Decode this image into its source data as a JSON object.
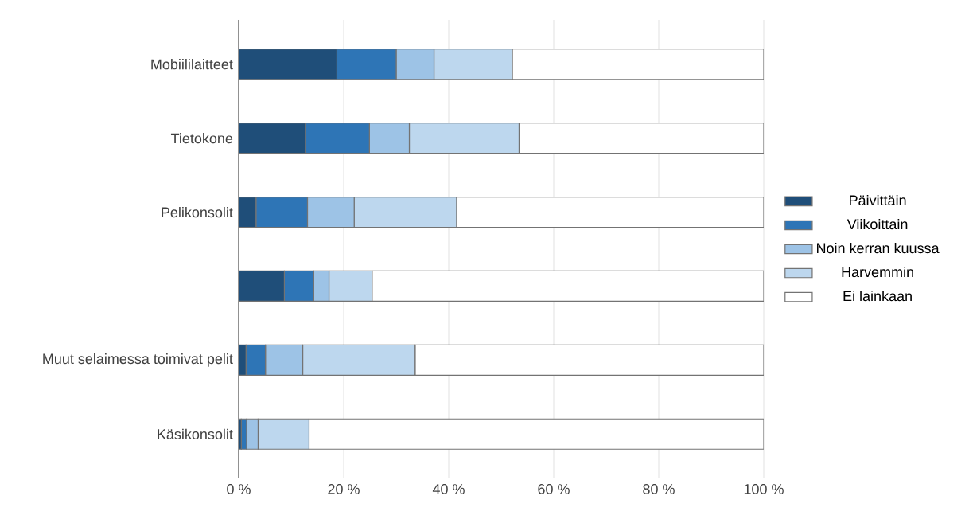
{
  "chart_data": {
    "type": "bar",
    "orientation": "horizontal",
    "stacked": true,
    "categories": [
      "Mobiililaitteet",
      "Tietokone",
      "Pelikonsolit",
      null,
      "Muut selaimessa toimivat pelit",
      "Käsikonsolit"
    ],
    "series": [
      {
        "name": "Päivittäin",
        "color": "#1f4e79",
        "values": [
          18.7,
          12.7,
          3.3,
          8.7,
          1.4,
          0.5
        ]
      },
      {
        "name": "Viikoittain",
        "color": "#2e75b6",
        "values": [
          11.3,
          12.2,
          9.8,
          5.6,
          3.7,
          1.0
        ]
      },
      {
        "name": "Noin kerran kuussa",
        "color": "#9dc3e6",
        "values": [
          7.2,
          7.6,
          8.9,
          2.9,
          7.1,
          2.2
        ]
      },
      {
        "name": "Harvemmin",
        "color": "#bdd7ee",
        "values": [
          14.9,
          20.9,
          19.5,
          8.2,
          21.4,
          9.7
        ]
      },
      {
        "name": "Ei lainkaan",
        "color": "#ffffff",
        "values": [
          47.9,
          46.6,
          58.5,
          74.6,
          66.4,
          86.6
        ]
      }
    ],
    "xlim": [
      0,
      100
    ],
    "xticks": [
      {
        "value": 0,
        "label": "0 %"
      },
      {
        "value": 20,
        "label": "20 %"
      },
      {
        "value": 40,
        "label": "40 %"
      },
      {
        "value": 60,
        "label": "60 %"
      },
      {
        "value": 80,
        "label": "80 %"
      },
      {
        "value": 100,
        "label": "100 %"
      }
    ],
    "grid": "x",
    "legend": "right"
  }
}
